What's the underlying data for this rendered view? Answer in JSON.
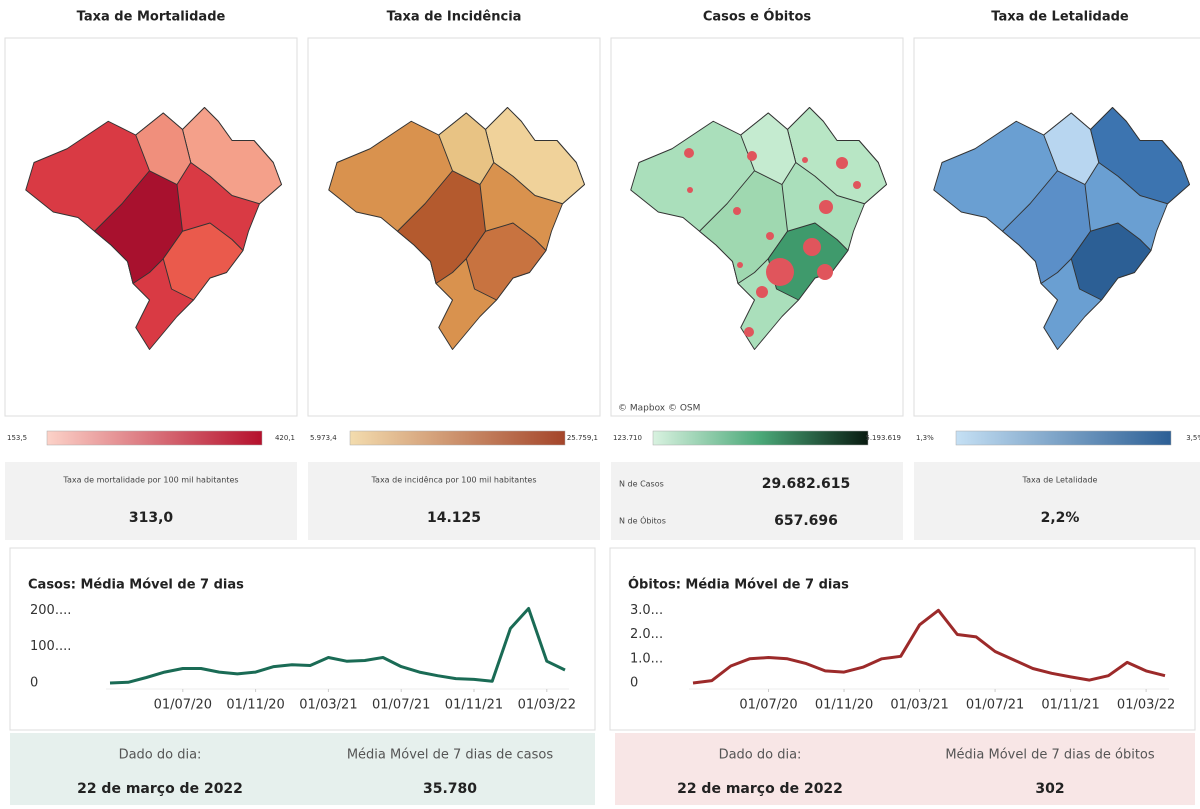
{
  "maps": [
    {
      "title": "Taxa de Mortalidade",
      "legend_min": "153,5",
      "legend_max": "420,1",
      "metrics": [
        {
          "label": "Taxa de mortalidade por 100 mil habitantes",
          "value": "313,0"
        }
      ]
    },
    {
      "title": "Taxa de Incidência",
      "legend_min": "5.973,4",
      "legend_max": "25.759,1",
      "metrics": [
        {
          "label": "Taxa de incidênca por 100 mil habitantes",
          "value": "14.125"
        }
      ]
    },
    {
      "title": "Casos e Óbitos",
      "legend_min": "123.710",
      "legend_max": "5.193.619",
      "attribution": "© Mapbox © OSM",
      "metrics": [
        {
          "label": "N de Casos",
          "value": "29.682.615"
        },
        {
          "label": "N de Óbitos",
          "value": "657.696"
        }
      ]
    },
    {
      "title": "Taxa de Letalidade",
      "legend_min": "1,3%",
      "legend_max": "3,5%",
      "metrics": [
        {
          "label": "Taxa de Letalidade",
          "value": "2,2%"
        }
      ]
    }
  ],
  "chart_data": [
    {
      "type": "line",
      "title": "Casos: Média Móvel de 7 dias",
      "x": [
        "01/03/20",
        "01/04/20",
        "01/05/20",
        "01/06/20",
        "01/07/20",
        "01/08/20",
        "01/09/20",
        "01/10/20",
        "01/11/20",
        "01/12/20",
        "01/01/21",
        "01/02/21",
        "01/03/21",
        "01/04/21",
        "01/05/21",
        "01/06/21",
        "01/07/21",
        "01/08/21",
        "01/09/21",
        "01/10/21",
        "01/11/21",
        "01/12/21",
        "01/01/22",
        "01/02/22",
        "01/03/22",
        "22/03/22"
      ],
      "xticks": [
        "01/07/20",
        "01/11/20",
        "01/03/21",
        "01/07/21",
        "01/11/21",
        "01/03/22"
      ],
      "series": [
        {
          "name": "Casos",
          "color": "#1a6b55",
          "values": [
            0,
            2000,
            15000,
            30000,
            40000,
            40000,
            30000,
            25000,
            30000,
            45000,
            50000,
            48000,
            70000,
            60000,
            62000,
            70000,
            45000,
            30000,
            20000,
            12000,
            10000,
            5000,
            150000,
            205000,
            60000,
            35780
          ]
        }
      ],
      "ylim": [
        0,
        220000
      ],
      "yticks": [
        0,
        {
          "value": 100000,
          "label": "100...."
        },
        {
          "value": 200000,
          "label": "200...."
        }
      ],
      "summary": {
        "day_label": "Dado do dia:",
        "date": "22 de março de 2022",
        "metric_label": "Média Móvel de 7 dias de casos",
        "metric_value": "35.780"
      }
    },
    {
      "type": "line",
      "title": "Óbitos: Média Móvel de 7 dias",
      "x": [
        "01/03/20",
        "01/04/20",
        "01/05/20",
        "01/06/20",
        "01/07/20",
        "01/08/20",
        "01/09/20",
        "01/10/20",
        "01/11/20",
        "01/12/20",
        "01/01/21",
        "01/02/21",
        "01/03/21",
        "01/04/21",
        "01/05/21",
        "01/06/21",
        "01/07/21",
        "01/08/21",
        "01/09/21",
        "01/10/21",
        "01/11/21",
        "01/12/21",
        "01/01/22",
        "01/02/22",
        "01/03/22",
        "22/03/22"
      ],
      "xticks": [
        "01/07/20",
        "01/11/20",
        "01/03/21",
        "01/07/21",
        "01/11/21",
        "01/03/22"
      ],
      "series": [
        {
          "name": "Óbitos",
          "color": "#9c2a2a",
          "values": [
            0,
            100,
            700,
            1000,
            1050,
            1000,
            800,
            500,
            450,
            650,
            1000,
            1100,
            2400,
            3000,
            2000,
            1900,
            1300,
            950,
            600,
            400,
            250,
            120,
            300,
            850,
            500,
            302
          ]
        }
      ],
      "ylim": [
        0,
        3300
      ],
      "yticks": [
        0,
        {
          "value": 1000,
          "label": "1.0..."
        },
        {
          "value": 2000,
          "label": "2.0..."
        },
        {
          "value": 3000,
          "label": "3.0..."
        }
      ],
      "summary": {
        "day_label": "Dado do dia:",
        "date": "22 de março de 2022",
        "metric_label": "Média Móvel de 7 dias de óbitos",
        "metric_value": "302"
      }
    }
  ]
}
